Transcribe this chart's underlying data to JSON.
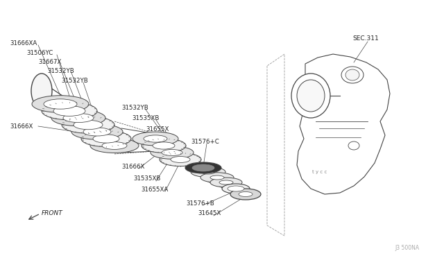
{
  "background_color": "#ffffff",
  "line_color": "#444444",
  "text_color": "#222222",
  "fig_width": 6.4,
  "fig_height": 3.72,
  "dpi": 100,
  "watermark": "J3 500NA",
  "sec_label": "SEC.311",
  "front_label": "FRONT"
}
